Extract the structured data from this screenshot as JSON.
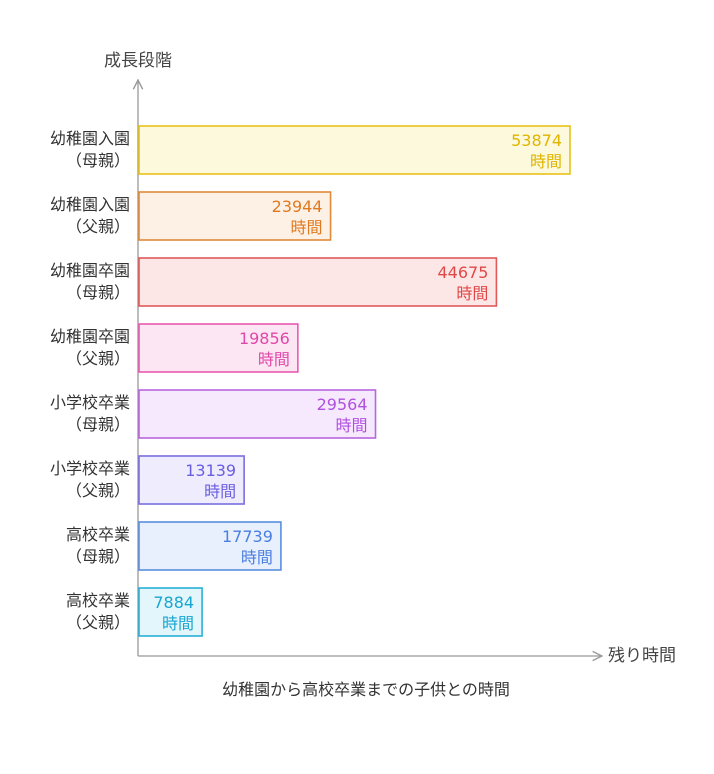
{
  "chart_data": {
    "type": "bar",
    "orientation": "horizontal",
    "title": "",
    "caption": "幼稚園から高校卒業までの子供との時間",
    "xlabel": "残り時間",
    "ylabel": "成長段階",
    "xlim": [
      0,
      53874
    ],
    "grid": false,
    "legend": "none",
    "unit_label": "時間",
    "categories": [
      [
        "幼稚園入園",
        "（母親）"
      ],
      [
        "幼稚園入園",
        "（父親）"
      ],
      [
        "幼稚園卒園",
        "（母親）"
      ],
      [
        "幼稚園卒園",
        "（父親）"
      ],
      [
        "小学校卒業",
        "（母親）"
      ],
      [
        "小学校卒業",
        "（父親）"
      ],
      [
        "高校卒業",
        "（母親）"
      ],
      [
        "高校卒業",
        "（父親）"
      ]
    ],
    "values": [
      53874,
      23944,
      44675,
      19856,
      29564,
      13139,
      17739,
      7884
    ],
    "colors": [
      {
        "stroke": "#e8c21a",
        "fill": "#fdf9dc",
        "text": "#e0b400"
      },
      {
        "stroke": "#e08a3a",
        "fill": "#fdf0e4",
        "text": "#e07a20"
      },
      {
        "stroke": "#e05a5a",
        "fill": "#fde6e6",
        "text": "#e04848"
      },
      {
        "stroke": "#e85ab0",
        "fill": "#fde6f4",
        "text": "#e048a8"
      },
      {
        "stroke": "#b866e0",
        "fill": "#f6e9fd",
        "text": "#b050e0"
      },
      {
        "stroke": "#7a6ee0",
        "fill": "#eeecfd",
        "text": "#6a5ee0"
      },
      {
        "stroke": "#5a8ee0",
        "fill": "#e8f0fd",
        "text": "#4a7ee0"
      },
      {
        "stroke": "#2ab0d8",
        "fill": "#e2f6fb",
        "text": "#18a6d0"
      }
    ]
  }
}
